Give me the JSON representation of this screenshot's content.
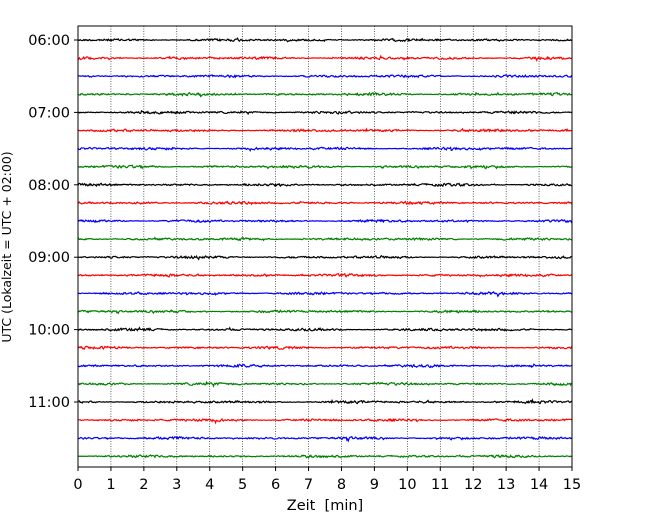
{
  "chart_data": {
    "type": "line",
    "title": "",
    "xlabel": "Zeit  [min]",
    "ylabel": "UTC (Lokalzeit = UTC + 02:00)",
    "xlim": [
      0,
      15
    ],
    "x_ticks": [
      "0",
      "1",
      "2",
      "3",
      "4",
      "5",
      "6",
      "7",
      "8",
      "9",
      "10",
      "11",
      "12",
      "13",
      "14",
      "15"
    ],
    "y_ticks": [
      "06:00",
      "07:00",
      "08:00",
      "09:00",
      "10:00",
      "11:00"
    ],
    "x_grid": "dotted-vertical",
    "trace_interval_minutes": 15,
    "trace_count": 24,
    "first_trace_time": "06:00",
    "colors": [
      "#000000",
      "#ff0000",
      "#0000ff",
      "#008000"
    ]
  }
}
